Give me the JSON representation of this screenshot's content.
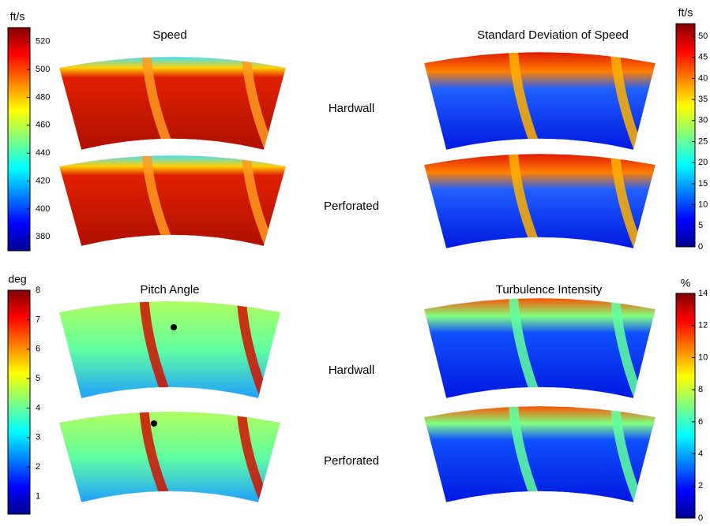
{
  "panels": [
    {
      "title": "Speed",
      "colorbar": {
        "unit": "ft/s",
        "lim": [
          370,
          530
        ],
        "ticks": [
          380,
          400,
          420,
          440,
          460,
          480,
          500,
          520
        ]
      }
    },
    {
      "title": "Standard Deviation of Speed",
      "colorbar": {
        "unit": "ft/s",
        "lim": [
          0,
          53
        ],
        "ticks": [
          0,
          5,
          10,
          15,
          20,
          25,
          30,
          35,
          40,
          45,
          50
        ]
      }
    },
    {
      "title": "Pitch Angle",
      "colorbar": {
        "unit": "deg",
        "lim": [
          0.4,
          8
        ],
        "ticks": [
          1,
          2,
          3,
          4,
          5,
          6,
          7,
          8
        ]
      }
    },
    {
      "title": "Turbulence Intensity",
      "colorbar": {
        "unit": "%",
        "lim": [
          0,
          14
        ],
        "ticks": [
          0,
          2,
          4,
          6,
          8,
          10,
          12,
          14
        ]
      }
    }
  ],
  "row_labels": [
    "Hardwall",
    "Perforated",
    "Hardwall",
    "Perforated"
  ]
}
